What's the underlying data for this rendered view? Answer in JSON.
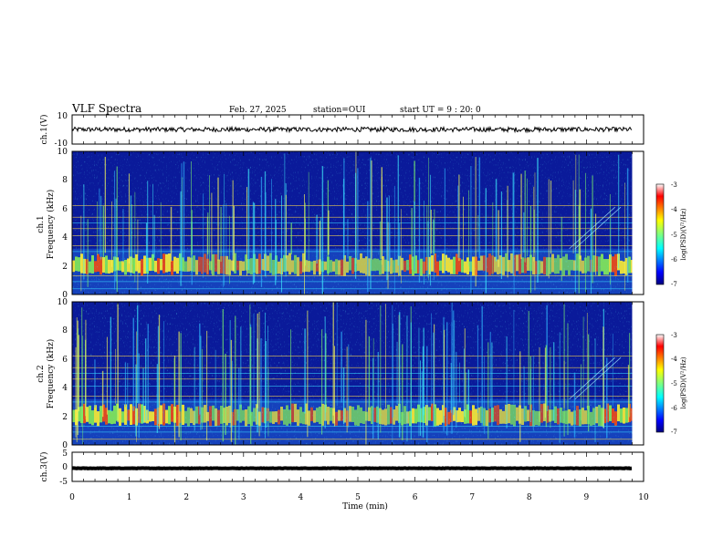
{
  "header": {
    "title": "VLF Spectra",
    "date": "Feb. 27, 2025",
    "station": "station=OUI",
    "start": "start UT = 9 : 20: 0"
  },
  "chart_data": [
    {
      "type": "line",
      "id": "ch1-waveform",
      "ylabel": "ch.1(V)",
      "ylim": [
        -10,
        10
      ],
      "ytick_labels": [
        "10",
        "-10"
      ],
      "x_range": [
        0,
        9.8
      ],
      "approx_level": 0
    },
    {
      "type": "heatmap",
      "id": "ch1-spectrogram",
      "ylabel_top": "ch.1",
      "ylabel": "Frequency (kHz)",
      "ylim": [
        0,
        10
      ],
      "ytick_labels": [
        "0",
        "2",
        "4",
        "6",
        "8",
        "10"
      ],
      "x_range": [
        0,
        9.8
      ],
      "dominant_band_khz": [
        1.5,
        2.6
      ],
      "colorbar": {
        "label": "log(PSD)(V²/Hz)",
        "range": [
          -7,
          -3
        ],
        "tick_labels": [
          "-3",
          "-4",
          "-5",
          "-6",
          "-7"
        ]
      }
    },
    {
      "type": "heatmap",
      "id": "ch2-spectrogram",
      "ylabel_top": "ch.2",
      "ylabel": "Frequency (kHz)",
      "ylim": [
        0,
        10
      ],
      "ytick_labels": [
        "0",
        "2",
        "4",
        "6",
        "8",
        "10"
      ],
      "x_range": [
        0,
        9.8
      ],
      "dominant_band_khz": [
        1.5,
        2.6
      ],
      "colorbar": {
        "label": "log(PSD)(V²/Hz)",
        "range": [
          -7,
          -3
        ],
        "tick_labels": [
          "-3",
          "-4",
          "-5",
          "-6",
          "-7"
        ]
      }
    },
    {
      "type": "line",
      "id": "ch3-waveform",
      "ylabel": "ch.3(V)",
      "ylim": [
        -5,
        5
      ],
      "ytick_labels": [
        "5",
        "0",
        "-5"
      ],
      "x_range": [
        0,
        9.8
      ],
      "approx_level": -0.5
    }
  ],
  "x_axis": {
    "label": "Time (min)",
    "range": [
      0,
      10
    ],
    "tick_labels": [
      "0",
      "1",
      "2",
      "3",
      "4",
      "5",
      "6",
      "7",
      "8",
      "9",
      "10"
    ]
  },
  "colors": {
    "spectrogram_background": "#0a1a9a",
    "waveform": "#000000"
  }
}
